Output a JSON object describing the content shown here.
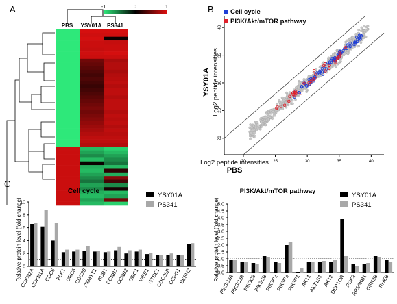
{
  "panels": {
    "a": "A",
    "b": "B",
    "c": "C"
  },
  "heatmap": {
    "columns": [
      "PBS",
      "YSY01A",
      "PS341"
    ],
    "scale_ticks": [
      "-1",
      "0",
      "1"
    ],
    "colors": {
      "low": "#2ee87a",
      "mid": "#000000",
      "high": "#e01010"
    },
    "rows": [
      [
        -1,
        0.95,
        0.95
      ],
      [
        -1,
        0.92,
        0.92
      ],
      [
        -1,
        0.95,
        0.05
      ],
      [
        -1,
        0.9,
        0.88
      ],
      [
        -1,
        0.9,
        0.9
      ],
      [
        -1,
        0.88,
        0.9
      ],
      [
        -1,
        0.92,
        0.95
      ],
      [
        -1,
        0.9,
        0.9
      ],
      [
        -1,
        0.5,
        0.75
      ],
      [
        -1,
        0.45,
        0.8
      ],
      [
        -1,
        0.4,
        0.8
      ],
      [
        -1,
        0.35,
        0.75
      ],
      [
        -1,
        0.3,
        0.8
      ],
      [
        -1,
        0.35,
        0.82
      ],
      [
        -1,
        0.3,
        0.85
      ],
      [
        -1,
        0.25,
        0.8
      ],
      [
        -1,
        0.3,
        0.85
      ],
      [
        -1,
        0.35,
        0.85
      ],
      [
        -1,
        0.4,
        0.8
      ],
      [
        -1,
        0.45,
        0.85
      ],
      [
        -1,
        0.5,
        0.85
      ],
      [
        -1,
        0.55,
        0.85
      ],
      [
        -1,
        0.5,
        0.8
      ],
      [
        -1,
        0.55,
        0.85
      ],
      [
        -1,
        0.6,
        0.82
      ],
      [
        -1,
        0.65,
        0.85
      ],
      [
        -1,
        0.7,
        0.8
      ],
      [
        -1,
        0.75,
        0.85
      ],
      [
        -1,
        0.8,
        0.82
      ],
      [
        -1,
        0.85,
        0.85
      ],
      [
        -1,
        0.85,
        0.85
      ],
      [
        -1,
        0.8,
        0.8
      ],
      [
        0.9,
        -0.8,
        -0.9
      ],
      [
        0.9,
        -0.7,
        -0.8
      ],
      [
        0.9,
        -0.6,
        -0.7
      ],
      [
        0.9,
        -0.8,
        -0.6
      ],
      [
        0.9,
        0.05,
        -0.5
      ],
      [
        0.9,
        -0.75,
        -0.8
      ],
      [
        0.9,
        -0.8,
        0.2
      ],
      [
        0.9,
        -0.7,
        -0.75
      ],
      [
        0.9,
        -0.6,
        0.6
      ],
      [
        0.9,
        -0.5,
        0.3
      ],
      [
        0.9,
        -0.7,
        -0.6
      ],
      [
        0.9,
        -0.6,
        0.1
      ],
      [
        0.9,
        -0.75,
        -0.8
      ],
      [
        0.9,
        -0.8,
        -0.7
      ],
      [
        0.9,
        -0.7,
        0.5
      ],
      [
        0.9,
        -0.8,
        -0.9
      ]
    ]
  },
  "chart_data": [
    {
      "type": "scatter",
      "panel": "B",
      "xlabel": "Log2 peptide intensities",
      "xlabel_group": "PBS",
      "ylabel": "Log2 peptide intensities",
      "ylabel_group": "YSY01A",
      "xlim": [
        17,
        42
      ],
      "ylim": [
        17,
        42
      ],
      "xticks": [
        20,
        25,
        30,
        35,
        40
      ],
      "yticks": [
        20,
        25,
        30,
        35,
        40
      ],
      "legend_position": "top-left",
      "series": [
        {
          "name": "Cell cycle",
          "color": "#1f3fd6"
        },
        {
          "name": "PI3K/Akt/mTOR pathway",
          "color": "#e0202a"
        }
      ]
    },
    {
      "type": "bar",
      "panel": "C",
      "title": "Cell cycle",
      "ylabel": "Relative protein level (fold change)",
      "ylim": [
        0,
        10
      ],
      "yticks": [
        0,
        2,
        4,
        6,
        8,
        10
      ],
      "reference_line": 1,
      "legend_position": "top-right",
      "categories": [
        "CDKN2A",
        "CDKN1A",
        "CDC6",
        "PLK1",
        "ORC6",
        "CDC20",
        "PKMYT1",
        "BUB1",
        "CCNB1",
        "CCNB2",
        "ORC1",
        "WEE1",
        "GTSE1",
        "CDC25B",
        "CCPG1",
        "SESN2"
      ],
      "series": [
        {
          "name": "YSY01A",
          "color": "#000000",
          "values": [
            6.6,
            6.2,
            4.0,
            2.2,
            2.3,
            2.4,
            2.3,
            2.2,
            2.5,
            2.0,
            2.3,
            1.9,
            1.7,
            1.8,
            1.7,
            3.5
          ]
        },
        {
          "name": "PS341",
          "color": "#a8a8a8",
          "values": [
            6.8,
            8.8,
            6.8,
            2.6,
            2.6,
            3.1,
            2.4,
            2.3,
            3.0,
            2.5,
            2.6,
            2.1,
            1.8,
            2.0,
            1.8,
            3.6
          ]
        }
      ]
    },
    {
      "type": "bar",
      "panel": "C",
      "title": "PI3K/Akt/mTOR pathway",
      "ylabel": "Relative protein level (fold change)",
      "ylim": [
        0,
        5
      ],
      "yticks": [
        0.0,
        0.5,
        1.0,
        1.5,
        2.0,
        2.5,
        3.0,
        3.5,
        4.0,
        4.5,
        5.0
      ],
      "reference_line": 1,
      "legend_position": "top-right",
      "categories": [
        "PIK3C2A",
        "PIK3C2B",
        "PIK3C3",
        "PIK3CB",
        "PIK3R2",
        "PIK3R3",
        "PIK3R1",
        "AKT1",
        "AKT1S1",
        "AKT2",
        "DEPTOR",
        "PDK2",
        "RPS6KB1",
        "GSK3B",
        "RHEB"
      ],
      "series": [
        {
          "name": "YSY01A",
          "color": "#000000",
          "values": [
            0.9,
            0.75,
            0.7,
            1.2,
            0.75,
            2.0,
            0.05,
            0.75,
            0.8,
            0.8,
            3.9,
            0.6,
            0.65,
            1.2,
            0.9
          ]
        },
        {
          "name": "PS341",
          "color": "#a8a8a8",
          "values": [
            0.9,
            0.8,
            0.65,
            1.1,
            0.7,
            2.2,
            0.3,
            0.8,
            0.85,
            0.9,
            1.2,
            0.5,
            0.7,
            1.1,
            0.8
          ]
        }
      ]
    }
  ]
}
